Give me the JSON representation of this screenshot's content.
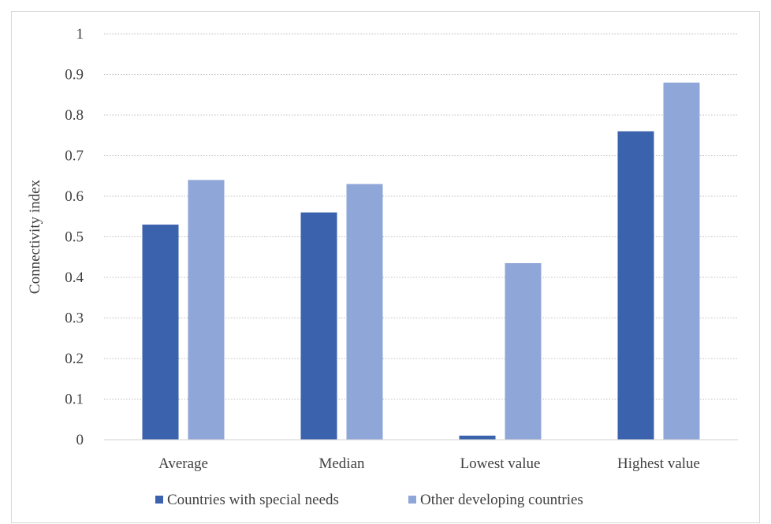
{
  "chart_data": {
    "type": "bar",
    "title": "",
    "xlabel": "",
    "ylabel": "Connectivity index",
    "ylim": [
      0,
      1
    ],
    "yticks": [
      "0",
      "0.1",
      "0.2",
      "0.3",
      "0.4",
      "0.5",
      "0.6",
      "0.7",
      "0.8",
      "0.9",
      "1"
    ],
    "categories": [
      "Average",
      "Median",
      "Lowest value",
      "Highest value"
    ],
    "series": [
      {
        "name": "Countries with special needs",
        "values": [
          0.53,
          0.56,
          0.01,
          0.76
        ]
      },
      {
        "name": "Other developing countries",
        "values": [
          0.64,
          0.63,
          0.435,
          0.88
        ]
      }
    ],
    "colors": [
      "#3a62ad",
      "#8fa6d8"
    ],
    "grid": true,
    "legend_position": "bottom"
  }
}
